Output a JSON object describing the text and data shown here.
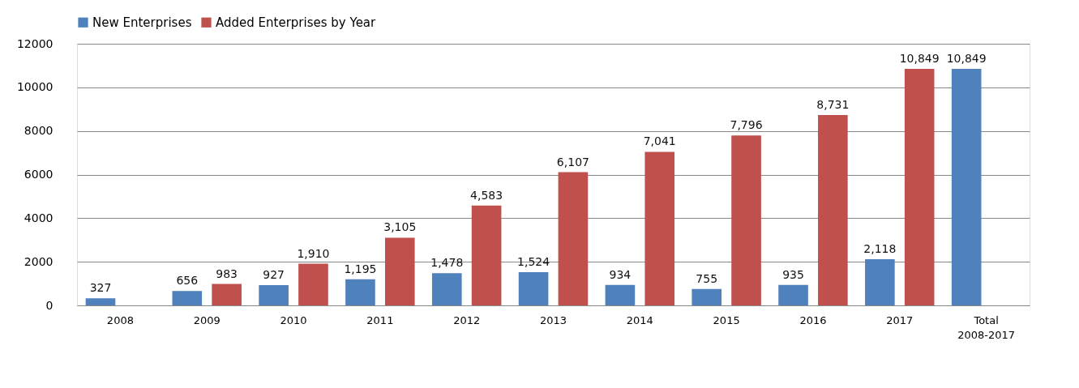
{
  "chart_data": {
    "type": "bar",
    "categories": [
      "2008",
      "2009",
      "2010",
      "2011",
      "2012",
      "2013",
      "2014",
      "2015",
      "2016",
      "2017",
      "Total 2008-2017"
    ],
    "series": [
      {
        "name": "New Enterprises",
        "color": "#4f81bd",
        "values": [
          327,
          656,
          927,
          1195,
          1478,
          1524,
          934,
          755,
          935,
          2118,
          10849
        ],
        "value_labels": [
          "327",
          "656",
          "927",
          "1,195",
          "1,478",
          "1,524",
          "934",
          "755",
          "935",
          "2,118",
          "10,849"
        ]
      },
      {
        "name": "Added Enterprises by Year",
        "color": "#c0504d",
        "values": [
          null,
          983,
          1910,
          3105,
          4583,
          6107,
          7041,
          7796,
          8731,
          10849,
          null
        ],
        "value_labels": [
          null,
          "983",
          "1,910",
          "3,105",
          "4,583",
          "6,107",
          "7,041",
          "7,796",
          "8,731",
          "10,849",
          null
        ]
      }
    ],
    "ylim": [
      0,
      12000
    ],
    "yticks": [
      0,
      2000,
      4000,
      6000,
      8000,
      10000,
      12000
    ],
    "grid": "y",
    "legend": "top"
  }
}
